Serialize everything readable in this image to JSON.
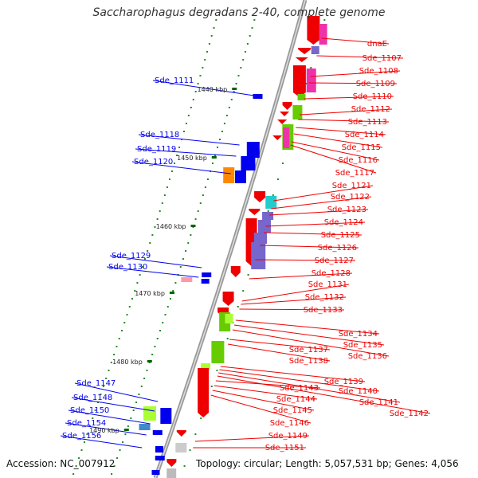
{
  "title": "Saccharophagus degradans 2-40, complete genome",
  "accession_text": "Accession: NC_007912",
  "summary_text": "Topology: circular; Length: 5,057,531 bp; Genes: 4,056",
  "colors": {
    "forward": "#ee0000",
    "reverse": "#0000ee",
    "backbone": "#999999",
    "tick": "#228b22",
    "green": "#66cc00",
    "lime": "#aaff33",
    "magenta": "#ee33aa",
    "purple": "#7766cc",
    "cyan": "#22cccc",
    "orange": "#ff8800"
  },
  "scale_ticks": [
    {
      "label": "1440 kbp"
    },
    {
      "label": "1450 kbp"
    },
    {
      "label": "1460 kbp"
    },
    {
      "label": "1470 kbp"
    },
    {
      "label": "1480 kbp"
    },
    {
      "label": "1490 kbp"
    }
  ],
  "left_labels": [
    "Sde_1111",
    "Sde_1118",
    "Sde_1119",
    "Sde_1120",
    "Sde_1129",
    "Sde_1130",
    "Sde_1147",
    "Sde_1148",
    "Sde_1150",
    "Sde_1154",
    "Sde_1156"
  ],
  "right_labels": [
    "dnaE",
    "Sde_1107",
    "Sde_1108",
    "Sde_1109",
    "Sde_1110",
    "Sde_1112",
    "Sde_1113",
    "Sde_1114",
    "Sde_1115",
    "Sde_1116",
    "Sde_1117",
    "Sde_1121",
    "Sde_1122",
    "Sde_1123",
    "Sde_1124",
    "Sde_1125",
    "Sde_1126",
    "Sde_1127",
    "Sde_1128",
    "Sde_1131",
    "Sde_1132",
    "Sde_1133",
    "Sde_1134",
    "Sde_1135",
    "Sde_1136",
    "Sde_1137",
    "Sde_1138",
    "Sde_1139",
    "Sde_1140",
    "Sde_1141",
    "Sde_1142",
    "Sde_1143",
    "Sde_1144",
    "Sde_1145",
    "Sde_1146",
    "Sde_1149",
    "Sde_1151"
  ]
}
